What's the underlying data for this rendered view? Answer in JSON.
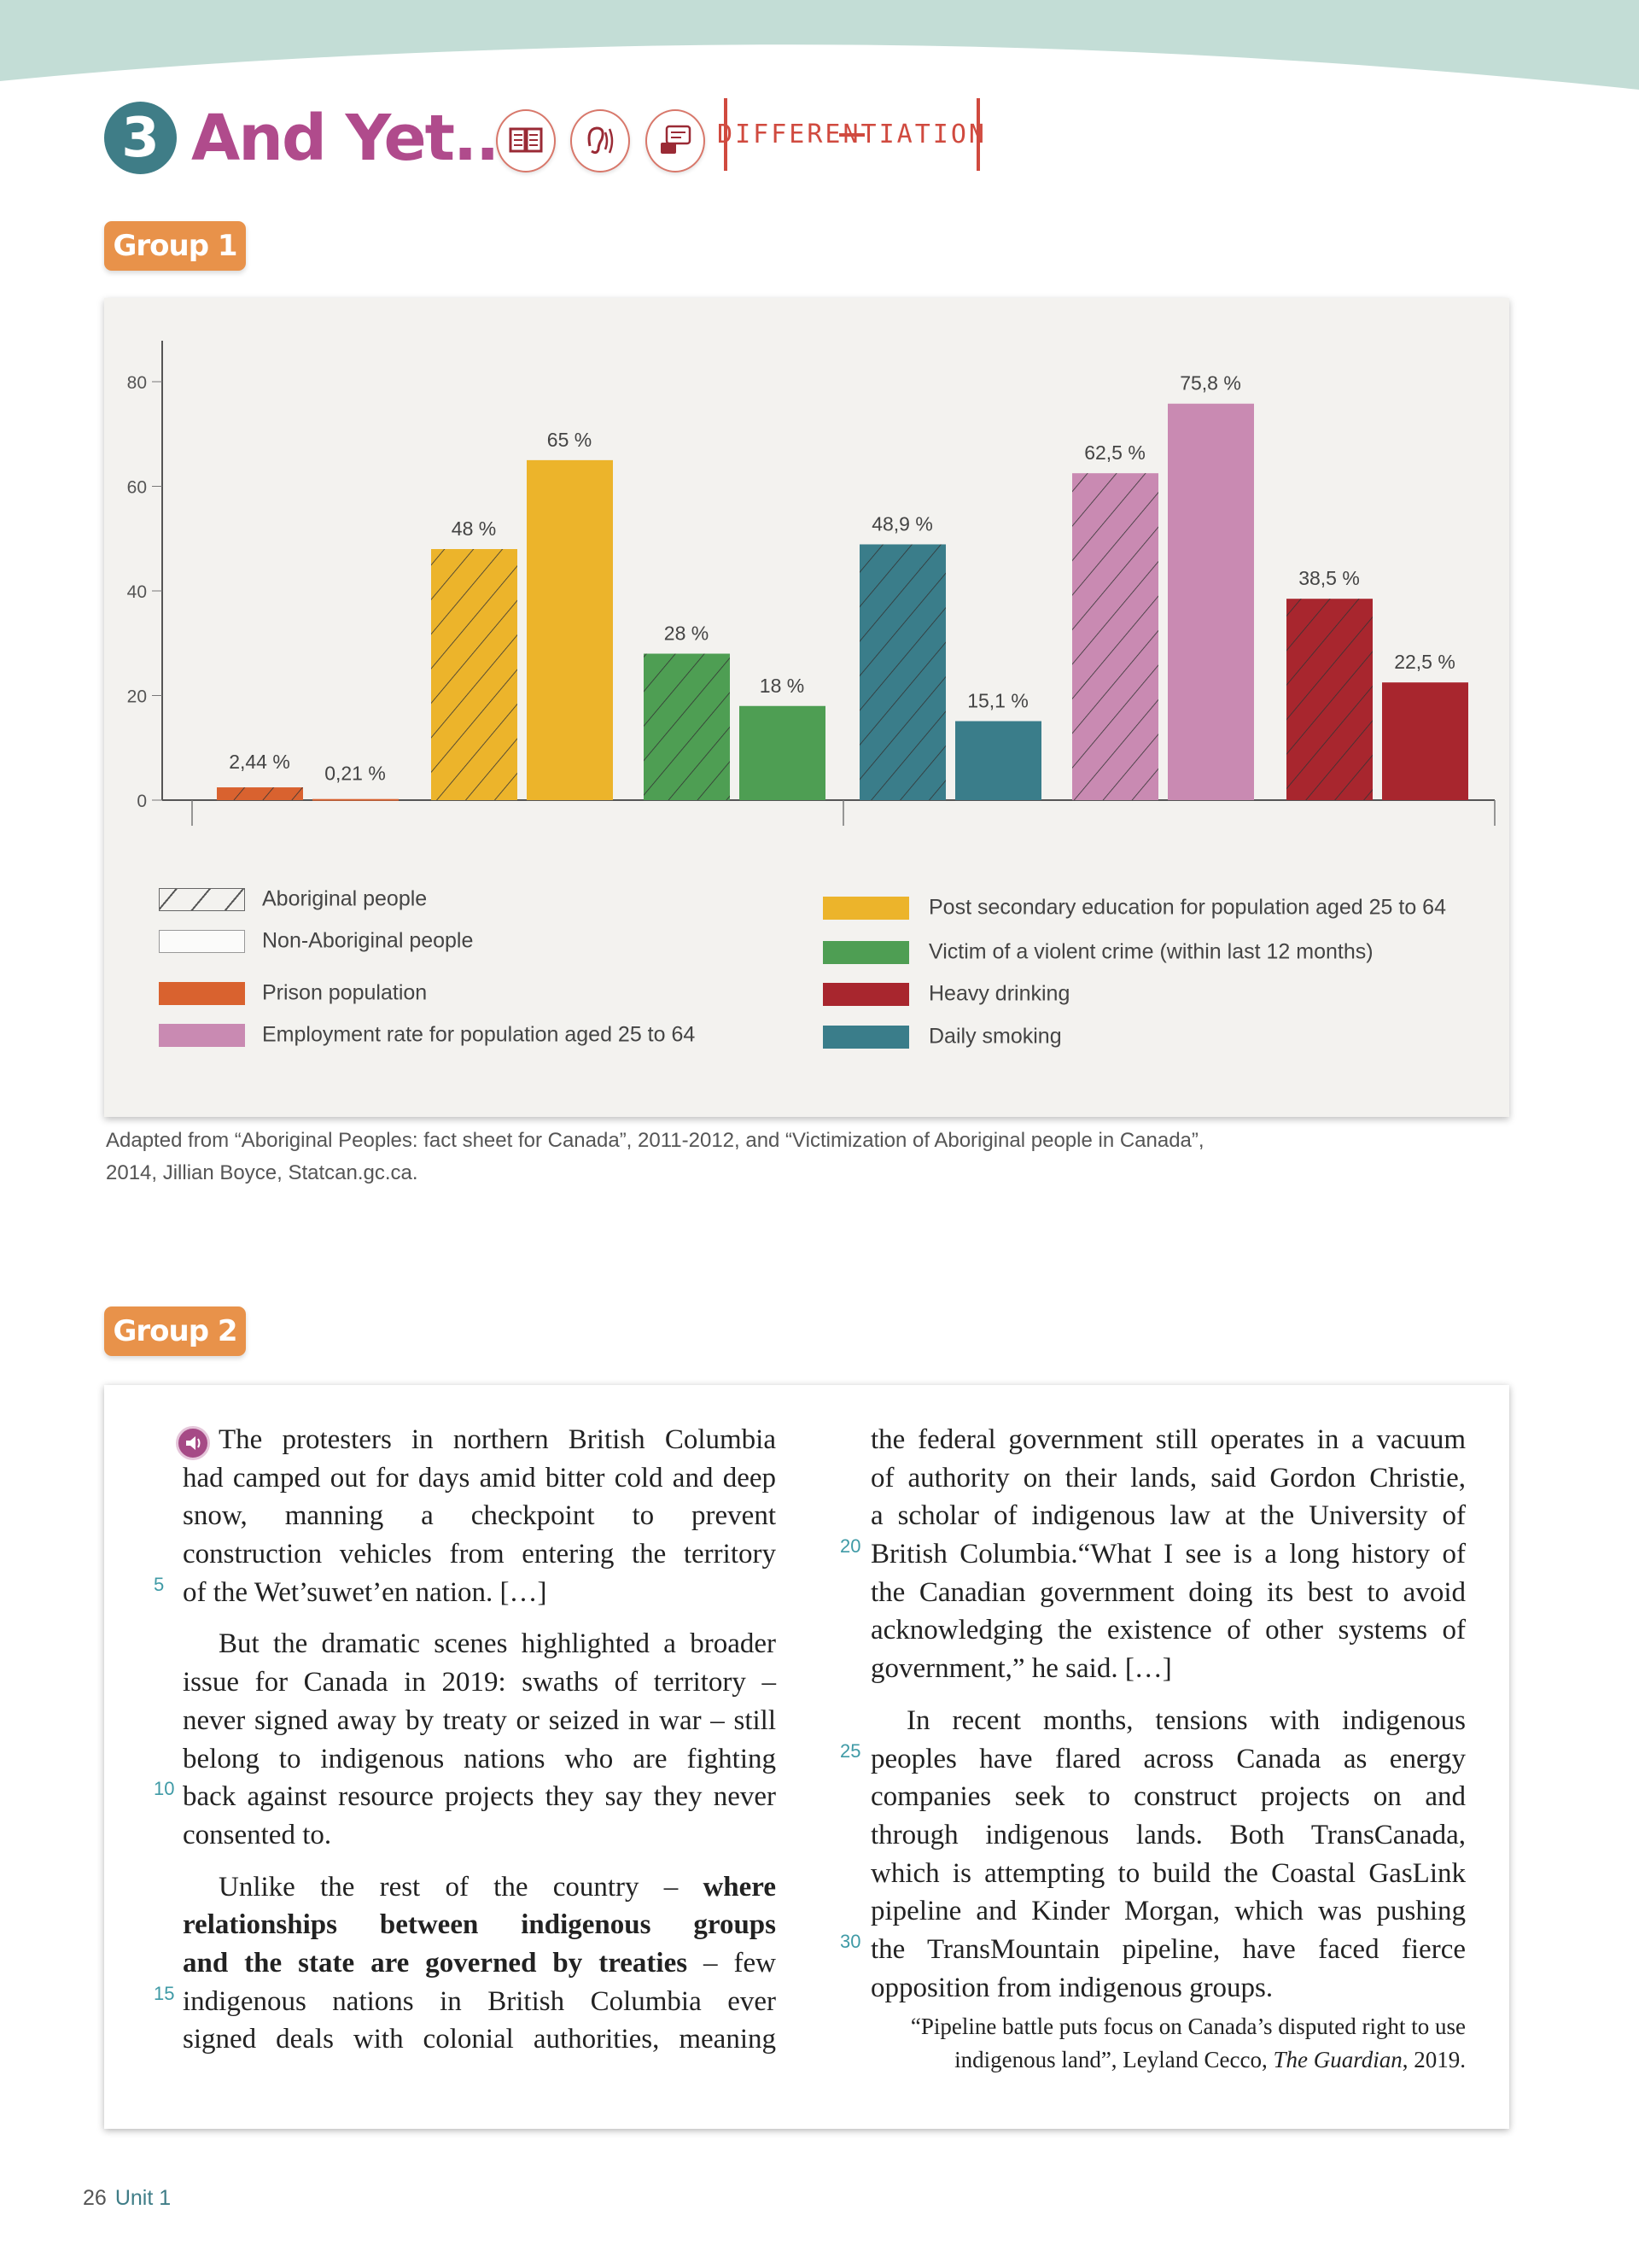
{
  "header": {
    "number": "3",
    "title": "And Yet...",
    "icons": [
      "reading-book-icon",
      "listening-ear-icon",
      "speaking-chat-icon"
    ],
    "tag": "DIFFERENTIATION"
  },
  "group1": {
    "label": "Group 1"
  },
  "group2": {
    "label": "Group 2"
  },
  "chart_data": {
    "type": "bar",
    "title": "",
    "xlabel": "",
    "ylabel": "",
    "ylim": [
      0,
      80
    ],
    "yticks": [
      "0",
      "20",
      "40",
      "60",
      "80"
    ],
    "grid": false,
    "legend_placement": "bottom",
    "categories": [
      "Prison population",
      "Post secondary education for population aged 25 to 64",
      "Victim of a violent crime (within last 12 months)",
      "Daily smoking",
      "Employment rate for population aged 25 to 64",
      "Heavy drinking"
    ],
    "colors": [
      "#d9622f",
      "#ecb42b",
      "#4e9e53",
      "#3a7d8a",
      "#c98ab2",
      "#a8262e"
    ],
    "series": [
      {
        "name": "Aboriginal people",
        "pattern": "hatched",
        "values": [
          2.44,
          48,
          28,
          48.9,
          62.5,
          38.5
        ],
        "labels": [
          "2,44 %",
          "48 %",
          "28 %",
          "48,9 %",
          "62,5 %",
          "38,5 %"
        ]
      },
      {
        "name": "Non-Aboriginal people",
        "pattern": "solid",
        "values": [
          0.21,
          65,
          18,
          15.1,
          75.8,
          22.5
        ],
        "labels": [
          "0,21 %",
          "65 %",
          "18 %",
          "15,1 %",
          "75,8 %",
          "22,5 %"
        ]
      }
    ],
    "legend": {
      "left": [
        "Aboriginal people",
        "Non-Aboriginal people",
        "Prison population",
        "Employment rate for population aged 25 to 64"
      ],
      "right": [
        "Post secondary education for population aged 25 to 64",
        "Victim of a violent crime (within last 12 months)",
        "Heavy drinking",
        "Daily smoking"
      ]
    }
  },
  "source": {
    "line1": "Adapted from “Aboriginal Peoples: fact sheet for Canada”, 2011-2012, and “Victimization of Aboriginal people in Canada”,",
    "line2": "2014, Jillian Boyce, Statcan.gc.ca."
  },
  "article": {
    "left": [
      {
        "segs": [
          {
            "t": "The protesters in northern British Columbia"
          }
        ],
        "cls": "indent first"
      },
      {
        "segs": [
          {
            "t": "had camped out for days amid bitter cold and deep"
          }
        ]
      },
      {
        "segs": [
          {
            "t": "snow, manning a checkpoint to prevent"
          }
        ]
      },
      {
        "segs": [
          {
            "t": "construction vehicles from entering the territory"
          }
        ]
      },
      {
        "segs": [
          {
            "t": "of the Wet’suwet’en nation. […]"
          }
        ],
        "cls": "last",
        "num": "5"
      },
      {
        "segs": [
          {
            "t": "But the dramatic scenes highlighted a broader"
          }
        ],
        "cls": "indent gap"
      },
      {
        "segs": [
          {
            "t": "issue for Canada in 2019: swaths of territory –"
          }
        ]
      },
      {
        "segs": [
          {
            "t": "never signed away by treaty or seized in war – still"
          }
        ]
      },
      {
        "segs": [
          {
            "t": "belong to indigenous nations who are fighting"
          }
        ]
      },
      {
        "segs": [
          {
            "t": "back against resource projects they say they never"
          }
        ],
        "num": "10"
      },
      {
        "segs": [
          {
            "t": "consented to."
          }
        ],
        "cls": "last"
      },
      {
        "segs": [
          {
            "t": "Unlike the rest of the country – "
          },
          {
            "t": "where",
            "b": true
          }
        ],
        "cls": "indent gap"
      },
      {
        "segs": [
          {
            "t": "relationships between indigenous groups",
            "b": true
          }
        ]
      },
      {
        "segs": [
          {
            "t": "and the state are governed by treaties",
            "b": true
          },
          {
            "t": " – few"
          }
        ]
      },
      {
        "segs": [
          {
            "t": "indigenous nations in British Columbia ever"
          }
        ],
        "num": "15"
      },
      {
        "segs": [
          {
            "t": "signed deals with colonial authorities, meaning"
          }
        ]
      }
    ],
    "right": [
      {
        "segs": [
          {
            "t": "the federal government still operates in a vacuum"
          }
        ]
      },
      {
        "segs": [
          {
            "t": "of authority on their lands, said Gordon Christie,"
          }
        ]
      },
      {
        "segs": [
          {
            "t": "a scholar of indigenous law at the University of"
          }
        ]
      },
      {
        "segs": [
          {
            "t": "British Columbia.“What I see is a long history of"
          }
        ],
        "num": "20"
      },
      {
        "segs": [
          {
            "t": "the Canadian government doing its best to avoid"
          }
        ]
      },
      {
        "segs": [
          {
            "t": "acknowledging the existence of other systems of"
          }
        ]
      },
      {
        "segs": [
          {
            "t": "government,” he said. […]"
          }
        ],
        "cls": "last"
      },
      {
        "segs": [
          {
            "t": "In recent months, tensions with indigenous"
          }
        ],
        "cls": "indent gap"
      },
      {
        "segs": [
          {
            "t": "peoples have flared across Canada as energy"
          }
        ],
        "num": "25"
      },
      {
        "segs": [
          {
            "t": "companies seek to construct projects on and"
          }
        ]
      },
      {
        "segs": [
          {
            "t": "through indigenous lands. Both TransCanada,"
          }
        ]
      },
      {
        "segs": [
          {
            "t": "which is attempting to build the Coastal GasLink"
          }
        ]
      },
      {
        "segs": [
          {
            "t": "pipeline and Kinder Morgan, which was pushing"
          }
        ]
      },
      {
        "segs": [
          {
            "t": "the TransMountain pipeline, have faced fierce"
          }
        ],
        "num": "30"
      },
      {
        "segs": [
          {
            "t": "opposition from indigenous groups."
          }
        ],
        "cls": "last"
      }
    ],
    "citation": {
      "line1": "“Pipeline battle puts focus on Canada’s disputed right to use",
      "line2a": "indigenous land”, Leyland Cecco, ",
      "line2b": "The Guardian",
      "line2c": ", 2019."
    }
  },
  "footer": {
    "page": "26",
    "unit": "Unit 1"
  }
}
